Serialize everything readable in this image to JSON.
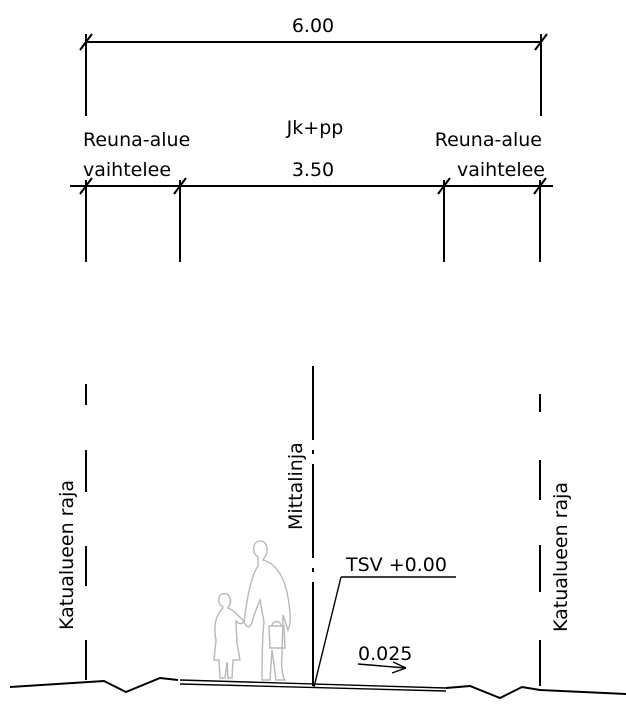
{
  "dimensions": {
    "total_width": "6.00",
    "path_label": "Jk+pp",
    "path_width": "3.50",
    "edge_left": {
      "line1": "Reuna-alue",
      "line2": "vaihtelee"
    },
    "edge_right": {
      "line1": "Reuna-alue",
      "line2": "vaihtelee"
    }
  },
  "labels": {
    "boundary_left": "Katualueen raja",
    "boundary_right": "Katualueen raja",
    "measure_line": "Mittalinja",
    "level": "TSV +0.00",
    "slope": "0.025"
  }
}
